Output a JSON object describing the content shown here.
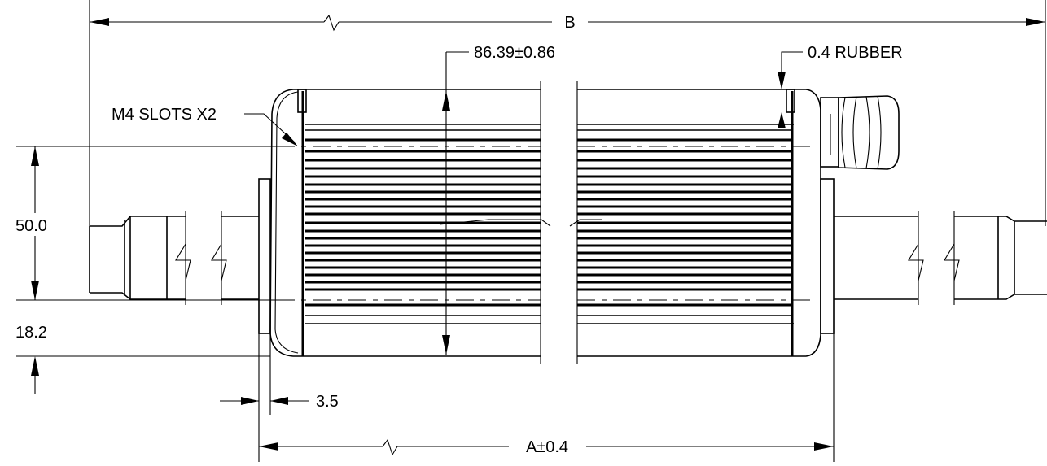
{
  "labels": {
    "overall_length": "B",
    "height": "86.39±0.86",
    "rubber": "0.4 RUBBER",
    "slots": "M4 SLOTS X2",
    "slot_spacing": "50.0",
    "slot_offset": "18.2",
    "flange": "3.5",
    "body_length": "A±0.4"
  }
}
